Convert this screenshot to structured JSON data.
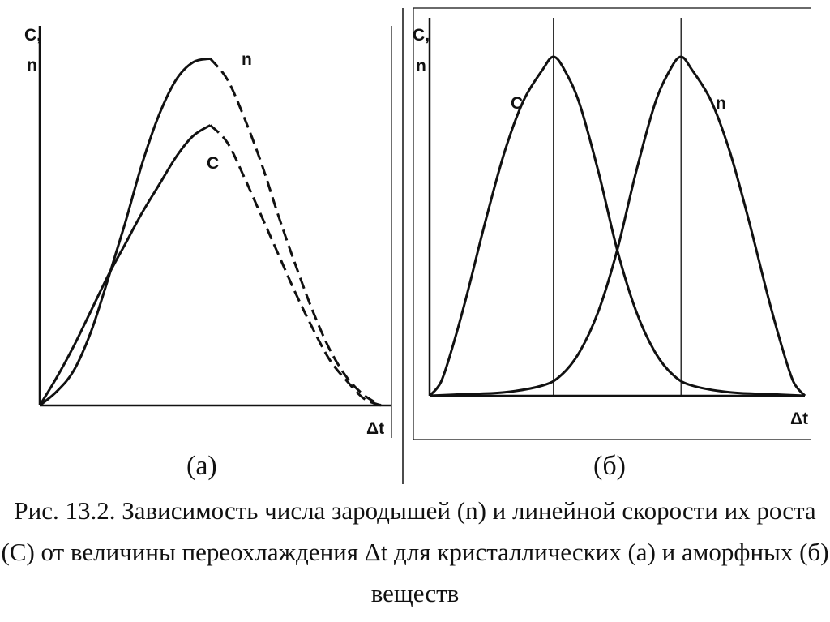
{
  "chart_data": [
    {
      "panel": "(а)",
      "type": "line",
      "ylabel_line1": "C,",
      "ylabel_line2": "n",
      "xlabel": "Δt",
      "xlim": [
        0,
        1
      ],
      "ylim": [
        0,
        1
      ],
      "axis_ticks_shown": false,
      "series": [
        {
          "name": "n",
          "x": [
            0,
            0.05,
            0.1,
            0.15,
            0.2,
            0.25,
            0.3,
            0.35,
            0.4,
            0.45,
            0.5,
            0.55,
            0.6,
            0.65,
            0.7,
            0.75,
            0.8,
            0.85,
            0.9,
            0.95,
            1.0
          ],
          "y": [
            0,
            0.04,
            0.1,
            0.21,
            0.36,
            0.52,
            0.69,
            0.83,
            0.93,
            0.98,
            0.99,
            0.93,
            0.82,
            0.69,
            0.54,
            0.4,
            0.27,
            0.16,
            0.08,
            0.03,
            0
          ],
          "solid_until_x": 0.5,
          "after_peak": "dashed"
        },
        {
          "name": "C",
          "x": [
            0,
            0.05,
            0.1,
            0.15,
            0.2,
            0.25,
            0.3,
            0.35,
            0.4,
            0.45,
            0.5,
            0.55,
            0.6,
            0.65,
            0.7,
            0.75,
            0.8,
            0.85,
            0.9,
            0.95,
            1.0
          ],
          "y": [
            0,
            0.08,
            0.17,
            0.27,
            0.37,
            0.46,
            0.55,
            0.63,
            0.71,
            0.77,
            0.8,
            0.75,
            0.65,
            0.54,
            0.43,
            0.32,
            0.22,
            0.13,
            0.07,
            0.02,
            0
          ],
          "solid_until_x": 0.5,
          "after_peak": "dashed"
        }
      ]
    },
    {
      "panel": "(б)",
      "type": "line",
      "ylabel_line1": "C,",
      "ylabel_line2": "n",
      "xlabel": "Δt",
      "xlim": [
        0,
        1
      ],
      "ylim": [
        0,
        1
      ],
      "axis_ticks_shown": false,
      "vertical_reference_lines_x": [
        0.33,
        0.67
      ],
      "series": [
        {
          "name": "C",
          "x": [
            0,
            0.03,
            0.06,
            0.1,
            0.15,
            0.2,
            0.25,
            0.3,
            0.33,
            0.36,
            0.4,
            0.45,
            0.5,
            0.55,
            0.6,
            0.65,
            0.7,
            0.8,
            0.9,
            1.0
          ],
          "y": [
            0,
            0.04,
            0.14,
            0.3,
            0.52,
            0.72,
            0.87,
            0.96,
            1.0,
            0.96,
            0.86,
            0.66,
            0.43,
            0.25,
            0.13,
            0.06,
            0.03,
            0.01,
            0.005,
            0
          ],
          "style": "solid"
        },
        {
          "name": "n",
          "x": [
            0,
            0.1,
            0.2,
            0.3,
            0.35,
            0.4,
            0.45,
            0.5,
            0.55,
            0.6,
            0.64,
            0.67,
            0.7,
            0.75,
            0.8,
            0.85,
            0.9,
            0.94,
            0.97,
            1.0
          ],
          "y": [
            0,
            0.005,
            0.01,
            0.03,
            0.06,
            0.13,
            0.25,
            0.43,
            0.66,
            0.86,
            0.96,
            1.0,
            0.96,
            0.87,
            0.72,
            0.52,
            0.3,
            0.14,
            0.04,
            0
          ],
          "style": "solid"
        }
      ]
    }
  ],
  "caption": {
    "line1": "Рис. 13.2. Зависимость числа зародышей (n) и линейной скорости их роста",
    "line2": "(С) от величины переохлаждения Δt для кристаллических (а) и аморфных (б)",
    "line3": "веществ"
  }
}
